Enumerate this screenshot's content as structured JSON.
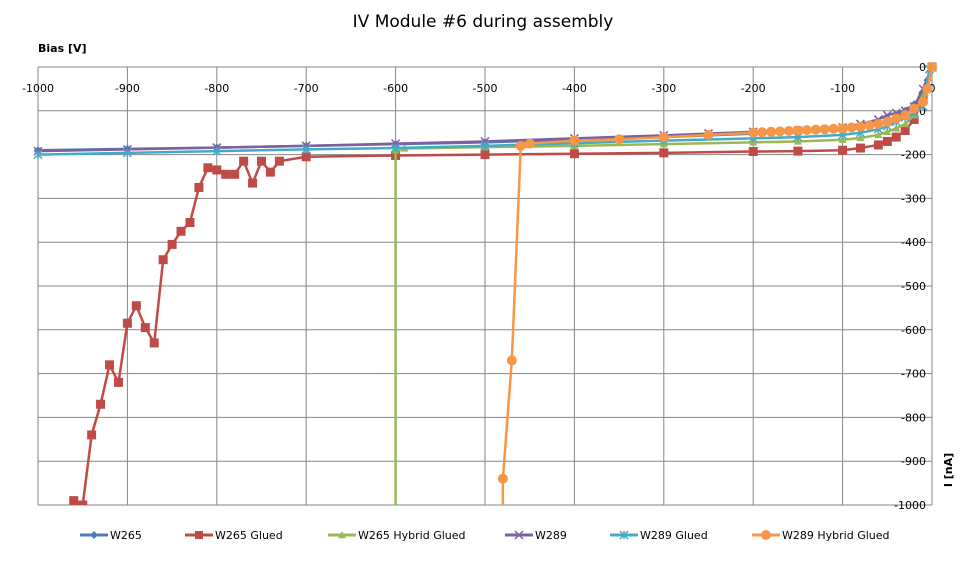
{
  "chart_data": {
    "type": "line",
    "title": "IV Module #6 during assembly",
    "xlabel": "Bias [V]",
    "ylabel": "I [nA]",
    "xlim": [
      -1000,
      0
    ],
    "ylim": [
      -1000,
      0
    ],
    "x_ticks": [
      -1000,
      -900,
      -800,
      -700,
      -600,
      -500,
      -400,
      -300,
      -200,
      -100,
      0
    ],
    "y_ticks": [
      0,
      -100,
      -200,
      -300,
      -400,
      -500,
      -600,
      -700,
      -800,
      -900,
      -1000
    ],
    "x_tick_labels": [
      "-1000",
      "-900",
      "-800",
      "-700",
      "-600",
      "-500",
      "-400",
      "-300",
      "-200",
      "-100",
      "0"
    ],
    "y_tick_labels": [
      "0",
      "-100",
      "-200",
      "-300",
      "-400",
      "-500",
      "-600",
      "-700",
      "-800",
      "-900",
      "-1000"
    ],
    "grid": true,
    "legend_position": "bottom",
    "series": [
      {
        "name": "W265",
        "color": "#4A7EBB",
        "marker": "diamond",
        "x": [
          0,
          -5,
          -10,
          -20,
          -30,
          -40,
          -50,
          -60,
          -80,
          -100,
          -150,
          -200,
          -250,
          -300,
          -400,
          -500,
          -600,
          -700,
          -800,
          -900,
          -1000
        ],
        "y": [
          0,
          -30,
          -60,
          -85,
          -100,
          -115,
          -125,
          -130,
          -138,
          -142,
          -148,
          -152,
          -156,
          -160,
          -166,
          -172,
          -176,
          -180,
          -184,
          -187,
          -190
        ]
      },
      {
        "name": "W265 Glued",
        "color": "#BE4B48",
        "marker": "square",
        "x": [
          0,
          -10,
          -20,
          -30,
          -40,
          -50,
          -60,
          -80,
          -100,
          -150,
          -200,
          -300,
          -400,
          -500,
          -600,
          -700,
          -730,
          -740,
          -750,
          -760,
          -770,
          -780,
          -790,
          -800,
          -810,
          -820,
          -830,
          -840,
          -850,
          -860,
          -870,
          -880,
          -890,
          -900,
          -910,
          -920,
          -930,
          -940,
          -950,
          -960
        ],
        "y": [
          0,
          -70,
          -120,
          -145,
          -160,
          -170,
          -178,
          -185,
          -190,
          -192,
          -193,
          -196,
          -198,
          -200,
          -202,
          -205,
          -215,
          -240,
          -215,
          -265,
          -215,
          -245,
          -245,
          -235,
          -230,
          -275,
          -355,
          -375,
          -405,
          -440,
          -630,
          -595,
          -545,
          -585,
          -720,
          -680,
          -770,
          -840,
          -1000,
          -990
        ]
      },
      {
        "name": "W265 Hybrid Glued",
        "color": "#98B954",
        "marker": "triangle",
        "x": [
          0,
          -10,
          -20,
          -30,
          -40,
          -50,
          -60,
          -80,
          -100,
          -150,
          -200,
          -300,
          -400,
          -500,
          -590,
          -600,
          -600
        ],
        "y": [
          0,
          -60,
          -110,
          -130,
          -140,
          -148,
          -155,
          -162,
          -166,
          -170,
          -172,
          -176,
          -180,
          -183,
          -186,
          -190,
          -1000
        ]
      },
      {
        "name": "W289",
        "color": "#7D60A0",
        "marker": "x",
        "x": [
          0,
          -10,
          -20,
          -30,
          -40,
          -50,
          -60,
          -80,
          -100,
          -150,
          -200,
          -250,
          -300,
          -400,
          -500,
          -600,
          -700,
          -800,
          -900,
          -1000
        ],
        "y": [
          0,
          -50,
          -90,
          -100,
          -105,
          -110,
          -120,
          -130,
          -138,
          -145,
          -148,
          -152,
          -156,
          -163,
          -170,
          -175,
          -180,
          -184,
          -188,
          -192
        ]
      },
      {
        "name": "W289 Glued",
        "color": "#46AAC5",
        "marker": "star",
        "x": [
          0,
          -3,
          -10,
          -20,
          -30,
          -40,
          -50,
          -60,
          -80,
          -100,
          -150,
          -200,
          -300,
          -400,
          -500,
          -600,
          -700,
          -800,
          -900,
          -1000
        ],
        "y": [
          0,
          -5,
          -90,
          -105,
          -115,
          -125,
          -135,
          -142,
          -150,
          -155,
          -160,
          -163,
          -168,
          -174,
          -180,
          -185,
          -188,
          -192,
          -196,
          -200
        ]
      },
      {
        "name": "W289 Hybrid Glued",
        "color": "#F79646",
        "marker": "circle",
        "x": [
          0,
          -5,
          -10,
          -20,
          -30,
          -40,
          -50,
          -60,
          -70,
          -80,
          -90,
          -100,
          -110,
          -120,
          -130,
          -140,
          -150,
          -160,
          -170,
          -180,
          -190,
          -200,
          -250,
          -300,
          -350,
          -400,
          -450,
          -460,
          -470,
          -480,
          -480
        ],
        "y": [
          0,
          -50,
          -80,
          -95,
          -110,
          -118,
          -125,
          -130,
          -133,
          -136,
          -138,
          -140,
          -141,
          -142,
          -143,
          -144,
          -145,
          -146,
          -147,
          -148,
          -149,
          -150,
          -155,
          -160,
          -165,
          -168,
          -175,
          -180,
          -670,
          -940,
          -1000
        ]
      }
    ]
  }
}
